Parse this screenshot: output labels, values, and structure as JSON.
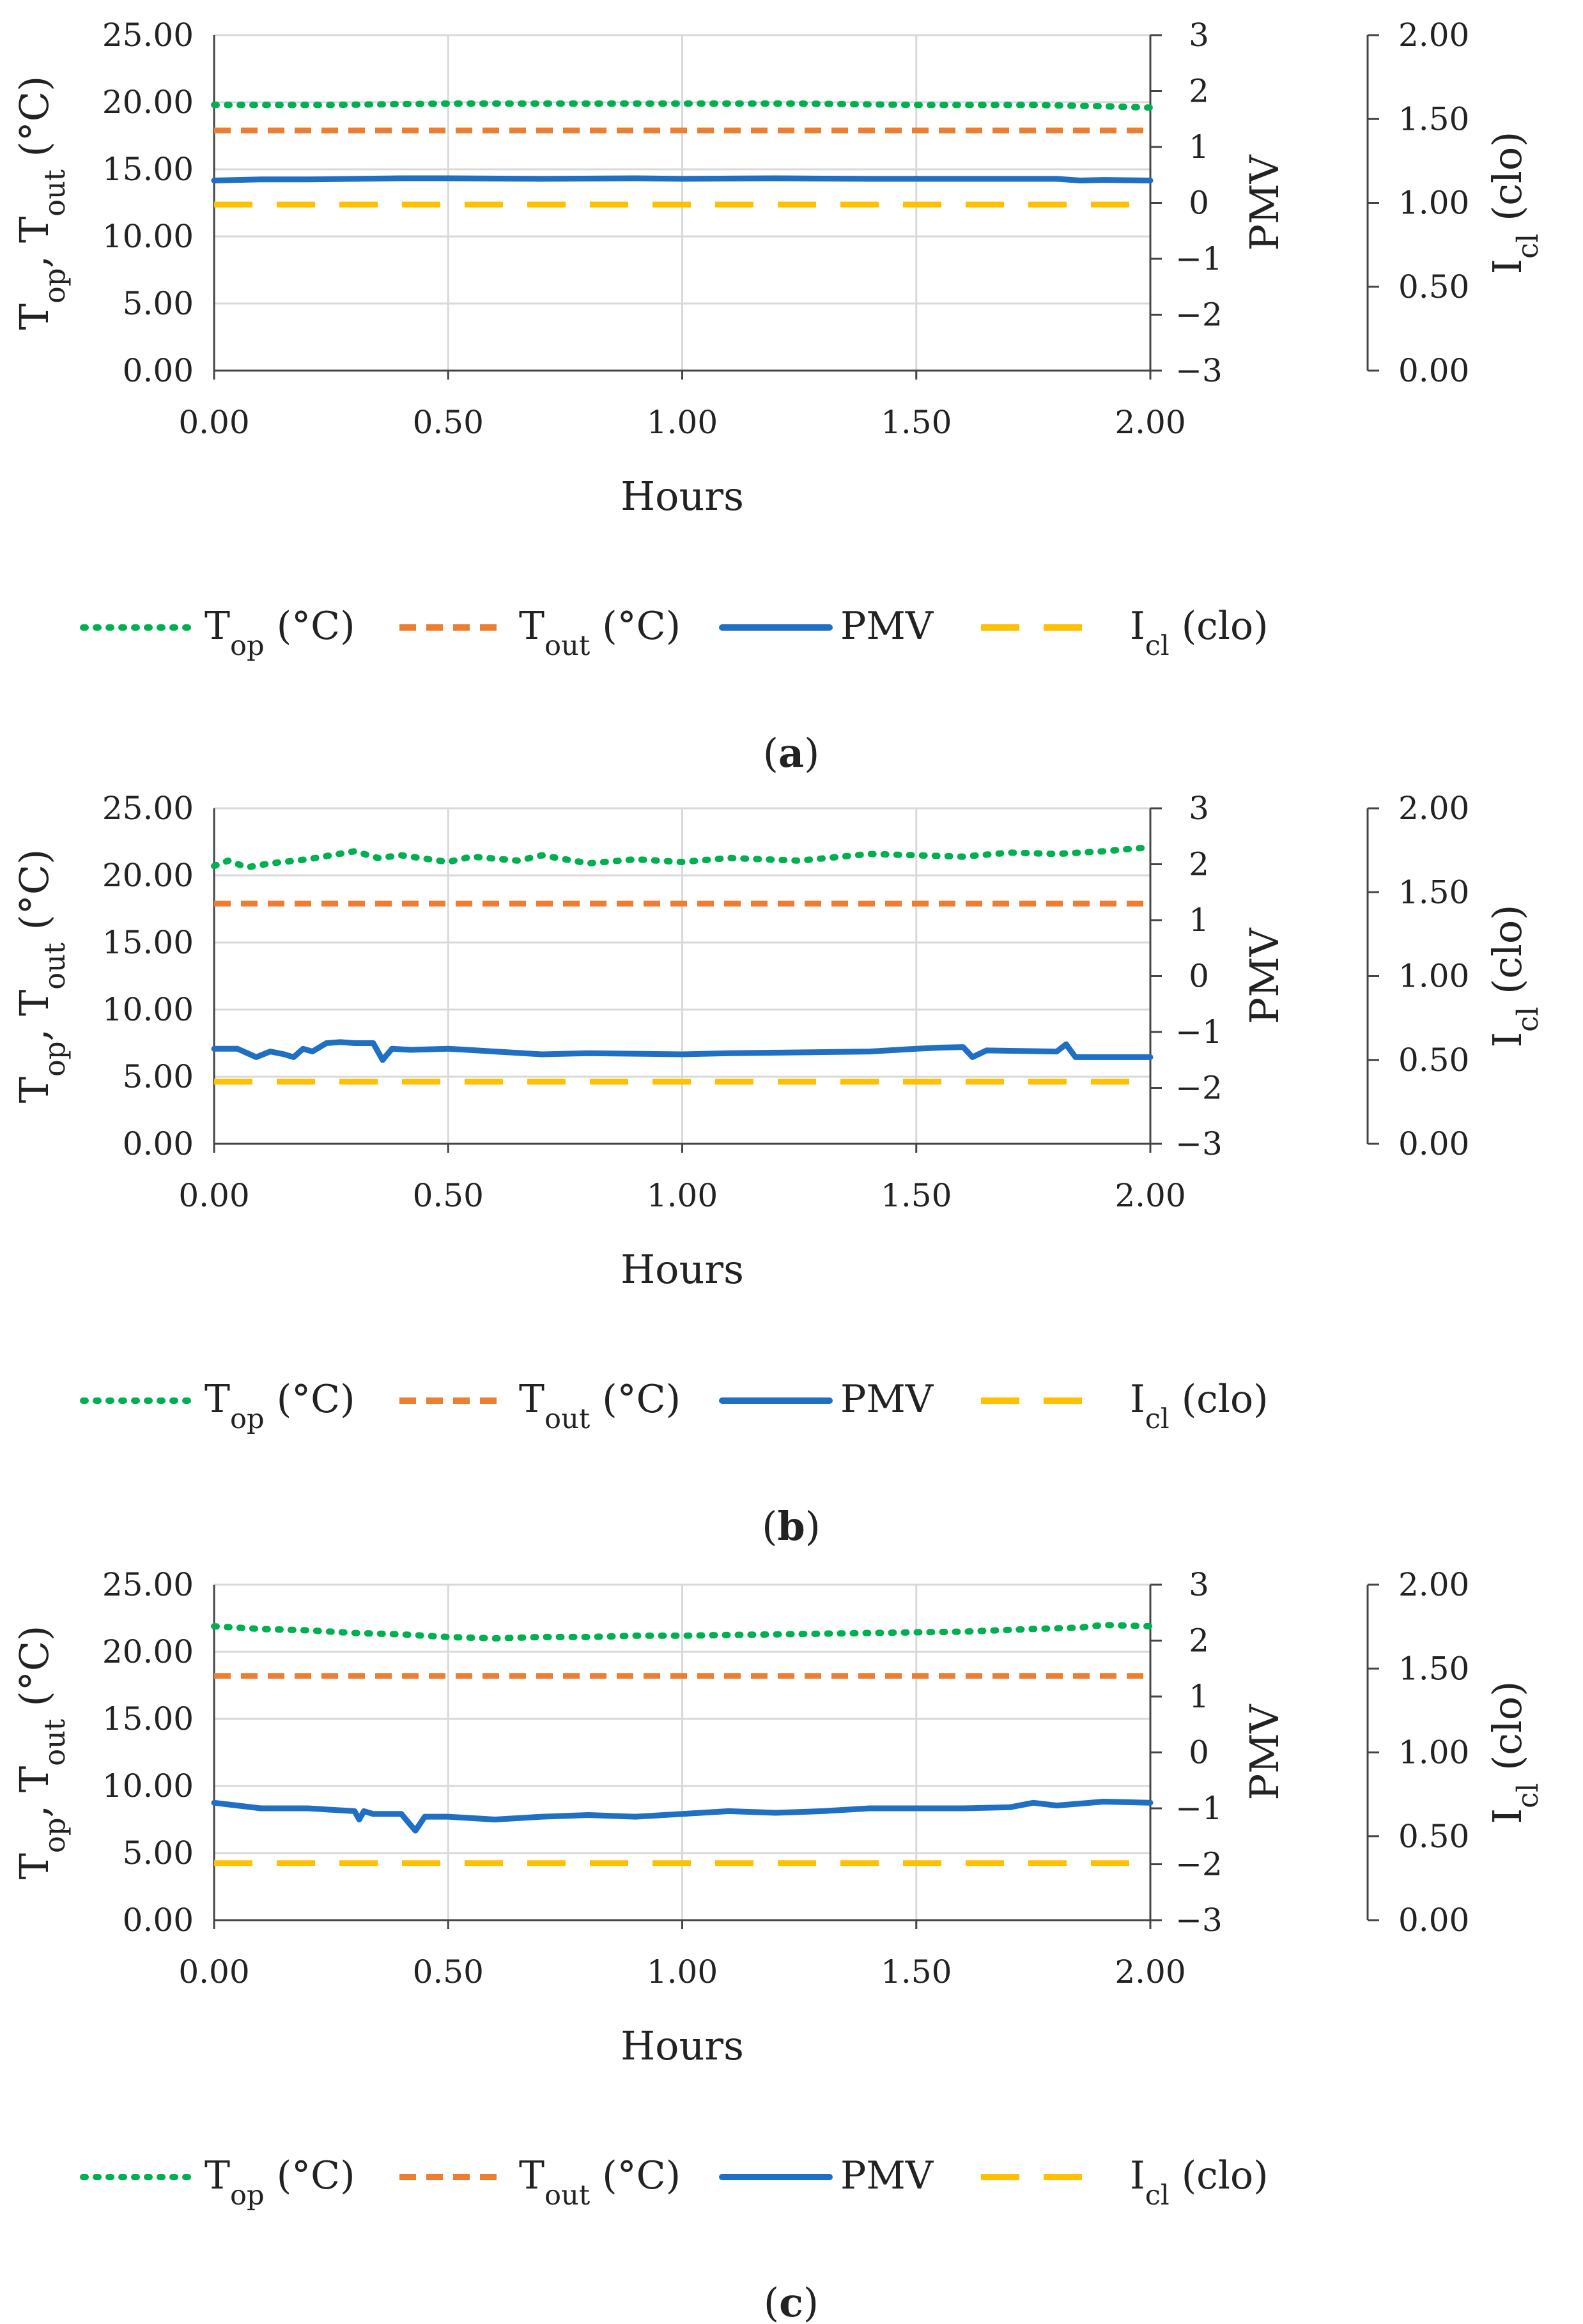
{
  "chart_data": [
    {
      "panel": "(a)",
      "panel_letter": "a",
      "type": "line",
      "xlabel": "Hours",
      "xlim": [
        0,
        2
      ],
      "x_ticks": [
        "0.00",
        "0.50",
        "1.00",
        "1.50",
        "2.00"
      ],
      "y_left": {
        "label_parts": [
          "T",
          "op",
          ", T",
          "out",
          " (°C)"
        ],
        "lim": [
          0,
          25
        ],
        "ticks": [
          "0.00",
          "5.00",
          "10.00",
          "15.00",
          "20.00",
          "25.00"
        ]
      },
      "y_mid": {
        "label": "PMV",
        "lim": [
          -3,
          3
        ],
        "ticks": [
          "−3",
          "−2",
          "−1",
          "0",
          "1",
          "2",
          "3"
        ]
      },
      "y_right": {
        "label_parts": [
          "I",
          "cl",
          " (clo)"
        ],
        "lim": [
          0,
          2
        ],
        "ticks": [
          "0.00",
          "0.50",
          "1.00",
          "1.50",
          "2.00"
        ]
      },
      "grid": true,
      "legend_position": "bottom",
      "series": [
        {
          "name": "T_op (°C)",
          "axis": "left",
          "style": "dotted",
          "color": "#00b050",
          "x": [
            0,
            0.25,
            0.5,
            0.75,
            1.0,
            1.25,
            1.5,
            1.75,
            1.9,
            2.0
          ],
          "y": [
            19.8,
            19.8,
            19.9,
            19.9,
            19.9,
            19.9,
            19.8,
            19.8,
            19.7,
            19.6
          ]
        },
        {
          "name": "T_out (°C)",
          "axis": "left",
          "style": "dashed",
          "color": "#ed7d31",
          "x": [
            0,
            2.0
          ],
          "y": [
            17.9,
            17.9
          ]
        },
        {
          "name": "PMV",
          "axis": "mid",
          "style": "solid",
          "color": "#1f6fc4",
          "x": [
            0,
            0.1,
            0.2,
            0.3,
            0.4,
            0.5,
            0.7,
            0.9,
            1.0,
            1.2,
            1.4,
            1.6,
            1.8,
            1.85,
            1.9,
            2.0
          ],
          "y": [
            0.4,
            0.42,
            0.42,
            0.43,
            0.44,
            0.44,
            0.43,
            0.44,
            0.43,
            0.44,
            0.43,
            0.43,
            0.43,
            0.4,
            0.41,
            0.4
          ]
        },
        {
          "name": "I_cl (clo)",
          "axis": "right",
          "style": "longdash",
          "color": "#ffc000",
          "x": [
            0,
            2.0
          ],
          "y": [
            0.99,
            0.99
          ]
        }
      ]
    },
    {
      "panel": "(b)",
      "panel_letter": "b",
      "type": "line",
      "xlabel": "Hours",
      "xlim": [
        0,
        2
      ],
      "x_ticks": [
        "0.00",
        "0.50",
        "1.00",
        "1.50",
        "2.00"
      ],
      "y_left": {
        "label_parts": [
          "T",
          "op",
          ", T",
          "out",
          " (°C)"
        ],
        "lim": [
          0,
          25
        ],
        "ticks": [
          "0.00",
          "5.00",
          "10.00",
          "15.00",
          "20.00",
          "25.00"
        ]
      },
      "y_mid": {
        "label": "PMV",
        "lim": [
          -3,
          3
        ],
        "ticks": [
          "−3",
          "−2",
          "−1",
          "0",
          "1",
          "2",
          "3"
        ]
      },
      "y_right": {
        "label_parts": [
          "I",
          "cl",
          " (clo)"
        ],
        "lim": [
          0,
          2
        ],
        "ticks": [
          "0.00",
          "0.50",
          "1.00",
          "1.50",
          "2.00"
        ]
      },
      "grid": true,
      "legend_position": "bottom",
      "series": [
        {
          "name": "T_op (°C)",
          "axis": "left",
          "style": "dotted",
          "color": "#00b050",
          "x": [
            0,
            0.03,
            0.07,
            0.12,
            0.2,
            0.3,
            0.35,
            0.4,
            0.5,
            0.55,
            0.65,
            0.7,
            0.8,
            0.9,
            1.0,
            1.1,
            1.25,
            1.4,
            1.5,
            1.6,
            1.7,
            1.8,
            1.9,
            2.0
          ],
          "y": [
            20.7,
            21.1,
            20.6,
            20.9,
            21.2,
            21.8,
            21.3,
            21.5,
            21.0,
            21.4,
            21.1,
            21.5,
            20.9,
            21.2,
            21.0,
            21.3,
            21.1,
            21.6,
            21.5,
            21.4,
            21.7,
            21.6,
            21.8,
            22.1
          ]
        },
        {
          "name": "T_out (°C)",
          "axis": "left",
          "style": "dashed",
          "color": "#ed7d31",
          "x": [
            0,
            2.0
          ],
          "y": [
            17.9,
            17.9
          ]
        },
        {
          "name": "PMV",
          "axis": "mid",
          "style": "solid",
          "color": "#1f6fc4",
          "x": [
            0,
            0.05,
            0.09,
            0.12,
            0.15,
            0.17,
            0.19,
            0.21,
            0.24,
            0.27,
            0.3,
            0.34,
            0.36,
            0.38,
            0.42,
            0.5,
            0.6,
            0.7,
            0.8,
            1.0,
            1.1,
            1.3,
            1.4,
            1.5,
            1.55,
            1.6,
            1.62,
            1.65,
            1.8,
            1.82,
            1.84,
            2.0
          ],
          "y": [
            -1.3,
            -1.3,
            -1.45,
            -1.35,
            -1.4,
            -1.45,
            -1.3,
            -1.35,
            -1.2,
            -1.18,
            -1.2,
            -1.2,
            -1.5,
            -1.3,
            -1.32,
            -1.3,
            -1.35,
            -1.4,
            -1.38,
            -1.4,
            -1.38,
            -1.36,
            -1.35,
            -1.3,
            -1.28,
            -1.27,
            -1.45,
            -1.33,
            -1.35,
            -1.22,
            -1.45,
            -1.45
          ]
        },
        {
          "name": "I_cl (clo)",
          "axis": "right",
          "style": "longdash",
          "color": "#ffc000",
          "x": [
            0,
            2.0
          ],
          "y": [
            0.37,
            0.37
          ]
        }
      ]
    },
    {
      "panel": "(c)",
      "panel_letter": "c",
      "type": "line",
      "xlabel": "Hours",
      "xlim": [
        0,
        2
      ],
      "x_ticks": [
        "0.00",
        "0.50",
        "1.00",
        "1.50",
        "2.00"
      ],
      "y_left": {
        "label_parts": [
          "T",
          "op",
          ", T",
          "out",
          " (°C)"
        ],
        "lim": [
          0,
          25
        ],
        "ticks": [
          "0.00",
          "5.00",
          "10.00",
          "15.00",
          "20.00",
          "25.00"
        ]
      },
      "y_mid": {
        "label": "PMV",
        "lim": [
          -3,
          3
        ],
        "ticks": [
          "−3",
          "−2",
          "−1",
          "0",
          "1",
          "2",
          "3"
        ]
      },
      "y_right": {
        "label_parts": [
          "I",
          "cl",
          " (clo)"
        ],
        "lim": [
          0,
          2
        ],
        "ticks": [
          "0.00",
          "0.50",
          "1.00",
          "1.50",
          "2.00"
        ]
      },
      "grid": true,
      "legend_position": "bottom",
      "series": [
        {
          "name": "T_op (°C)",
          "axis": "left",
          "style": "dotted",
          "color": "#00b050",
          "x": [
            0,
            0.1,
            0.2,
            0.3,
            0.4,
            0.5,
            0.6,
            0.7,
            0.8,
            0.9,
            1.0,
            1.2,
            1.4,
            1.6,
            1.75,
            1.85,
            1.9,
            2.0
          ],
          "y": [
            21.9,
            21.7,
            21.6,
            21.4,
            21.3,
            21.1,
            21.0,
            21.1,
            21.1,
            21.2,
            21.2,
            21.3,
            21.4,
            21.5,
            21.7,
            21.8,
            22.0,
            21.9
          ]
        },
        {
          "name": "T_out (°C)",
          "axis": "left",
          "style": "dashed",
          "color": "#ed7d31",
          "x": [
            0,
            2.0
          ],
          "y": [
            18.2,
            18.2
          ]
        },
        {
          "name": "PMV",
          "axis": "mid",
          "style": "solid",
          "color": "#1f6fc4",
          "x": [
            0,
            0.05,
            0.1,
            0.2,
            0.3,
            0.31,
            0.32,
            0.34,
            0.4,
            0.42,
            0.43,
            0.45,
            0.5,
            0.6,
            0.7,
            0.8,
            0.9,
            1.0,
            1.1,
            1.2,
            1.3,
            1.4,
            1.5,
            1.6,
            1.7,
            1.75,
            1.8,
            1.9,
            2.0
          ],
          "y": [
            -0.9,
            -0.95,
            -1.0,
            -1.0,
            -1.05,
            -1.2,
            -1.05,
            -1.1,
            -1.1,
            -1.3,
            -1.4,
            -1.15,
            -1.15,
            -1.2,
            -1.15,
            -1.12,
            -1.15,
            -1.1,
            -1.05,
            -1.08,
            -1.05,
            -1.0,
            -1.0,
            -1.0,
            -0.98,
            -0.9,
            -0.95,
            -0.88,
            -0.9
          ]
        },
        {
          "name": "I_cl (clo)",
          "axis": "right",
          "style": "longdash",
          "color": "#ffc000",
          "x": [
            0,
            2.0
          ],
          "y": [
            0.34,
            0.34
          ]
        }
      ]
    }
  ],
  "legend": [
    {
      "main": "T",
      "sub": "op",
      "rest": " (°C)"
    },
    {
      "main": "T",
      "sub": "out",
      "rest": " (°C)"
    },
    {
      "main": "PMV",
      "sub": "",
      "rest": ""
    },
    {
      "main": "I",
      "sub": "cl",
      "rest": " (clo)"
    }
  ],
  "colors": {
    "grid": "#d9d9d9",
    "axis": "#444444",
    "top": "#00b050",
    "tout": "#ed7d31",
    "pmv": "#1f6fc4",
    "icl": "#ffc000"
  }
}
